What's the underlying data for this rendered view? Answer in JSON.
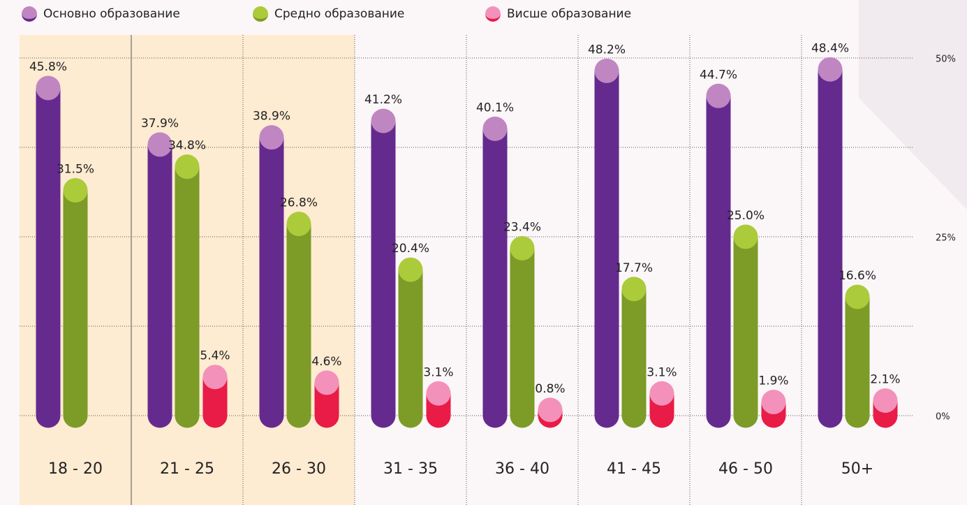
{
  "chart_data": {
    "type": "bar",
    "categories": [
      "18 - 20",
      "21 - 25",
      "26 - 30",
      "31 - 35",
      "36 - 40",
      "41 - 45",
      "46 - 50",
      "50+"
    ],
    "series": [
      {
        "name": "Основно образование",
        "color": "#652a8e",
        "top_color": "#c086c2",
        "values": [
          45.8,
          37.9,
          38.9,
          41.2,
          40.1,
          48.2,
          44.7,
          48.4
        ],
        "value_labels": [
          "45.8%",
          "37.9%",
          "38.9%",
          "41.2%",
          "40.1%",
          "48.2%",
          "44.7%",
          "48.4%"
        ]
      },
      {
        "name": "Средно образование",
        "color": "#7c9b27",
        "top_color": "#abcb3a",
        "values": [
          31.5,
          34.8,
          26.8,
          20.4,
          23.4,
          17.7,
          25.0,
          16.6
        ],
        "value_labels": [
          "31.5%",
          "34.8%",
          "26.8%",
          "20.4%",
          "23.4%",
          "17.7%",
          "25.0%",
          "16.6%"
        ]
      },
      {
        "name": "Висше образование",
        "color": "#e91b47",
        "top_color": "#f391ba",
        "values": [
          null,
          5.4,
          4.6,
          3.1,
          0.8,
          3.1,
          1.9,
          2.1
        ],
        "value_labels": [
          null,
          "5.4%",
          "4.6%",
          "3.1%",
          "0.8%",
          "3.1%",
          "1.9%",
          "2.1%"
        ]
      }
    ],
    "ylim": [
      0,
      50
    ],
    "yticks": [
      {
        "value": 0,
        "label": "0%"
      },
      {
        "value": 25,
        "label": "25%"
      },
      {
        "value": 50,
        "label": "50%"
      }
    ],
    "minor_yticks": [
      12.5,
      37.5
    ],
    "grid": true,
    "highlight_categories": [
      0,
      1,
      2
    ],
    "legend": "top-left"
  }
}
